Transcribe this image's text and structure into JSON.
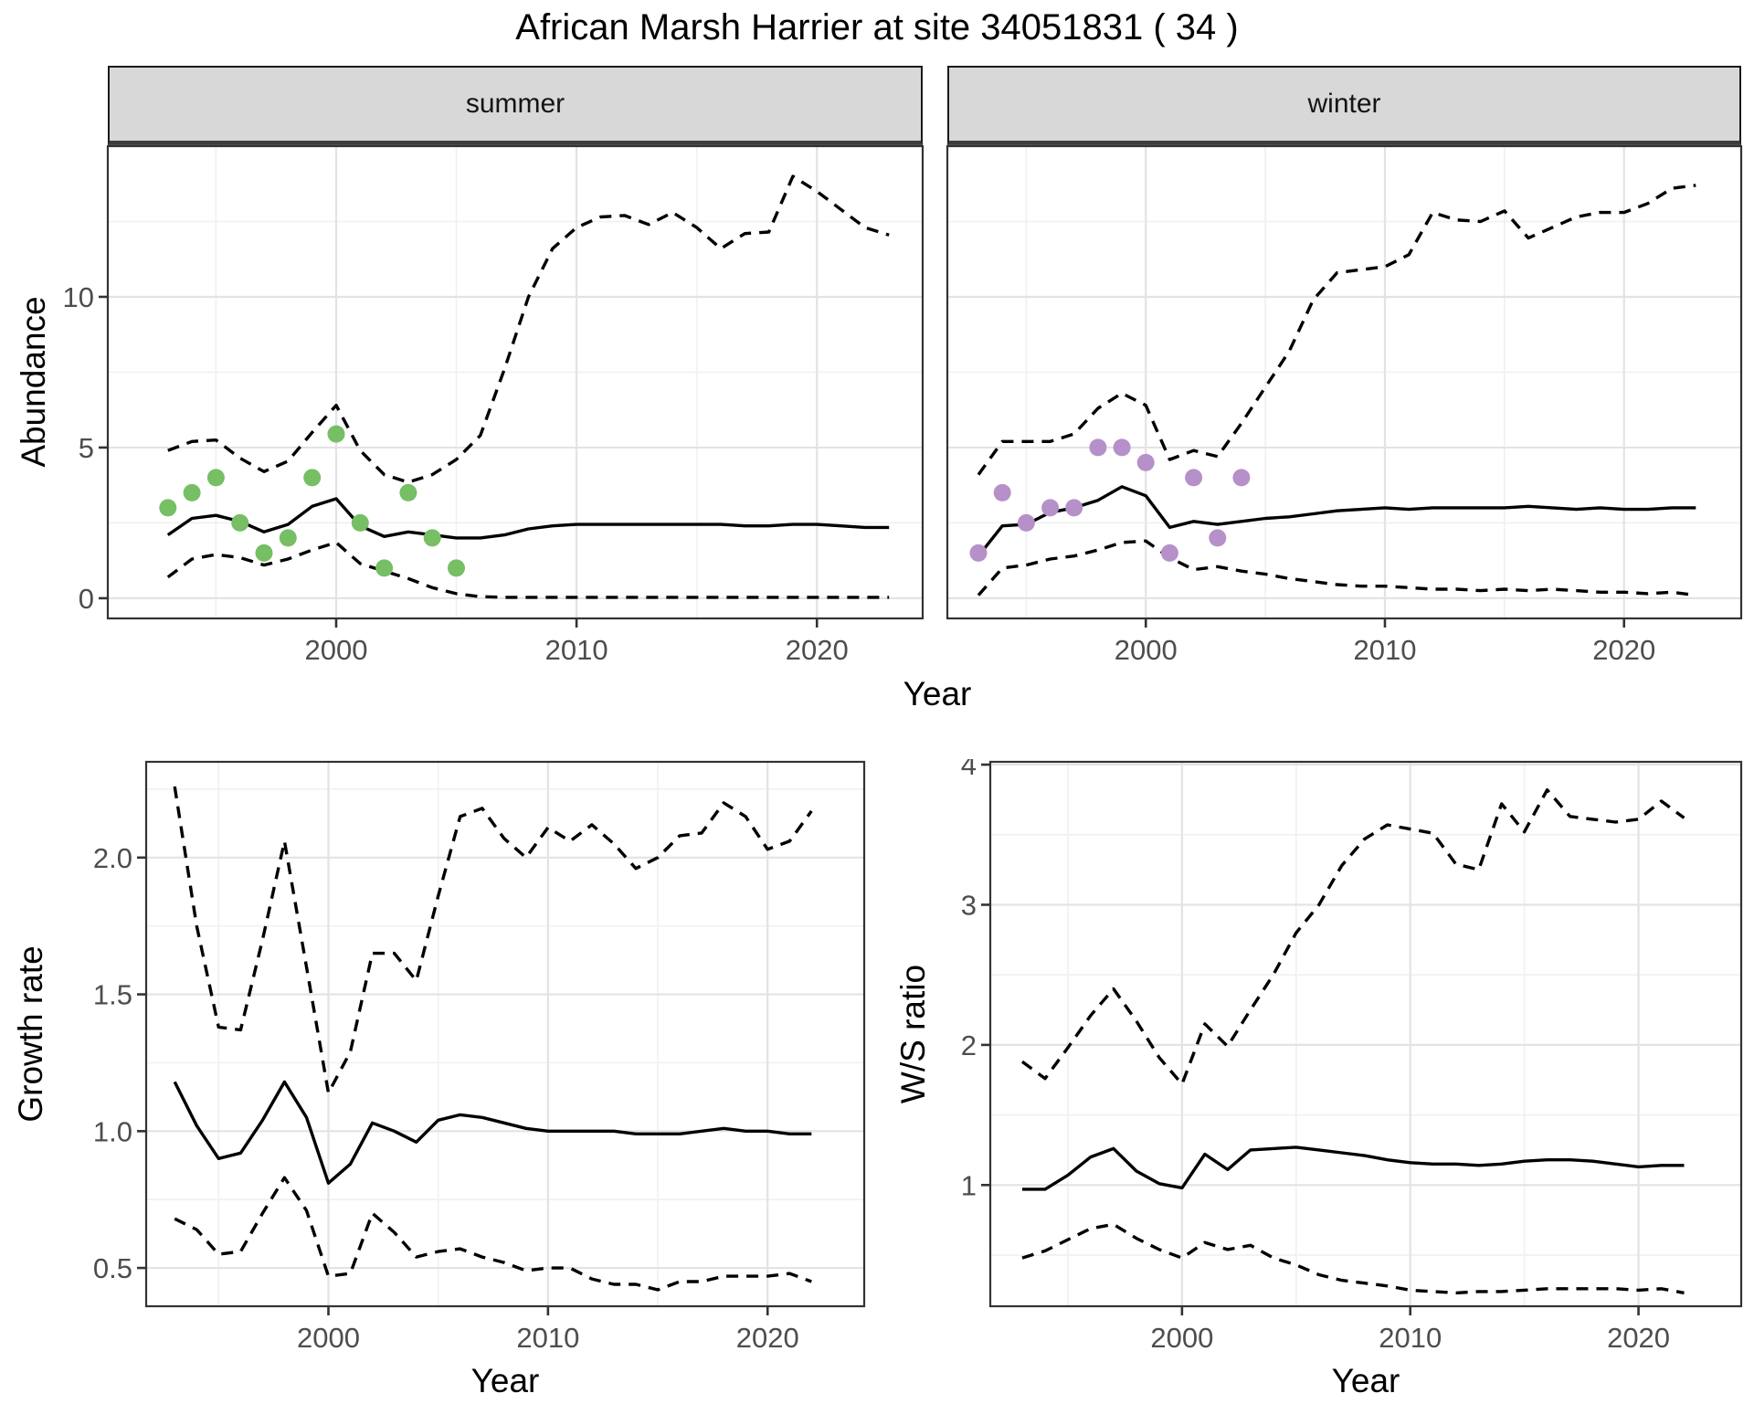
{
  "title": "African Marsh Harrier at site 34051831 ( 34 )",
  "facets": {
    "summer": "summer",
    "winter": "winter"
  },
  "axes": {
    "y_top": "Abundance",
    "y_bottom_left": "Growth rate",
    "y_bottom_right": "W/S ratio",
    "x": "Year"
  },
  "colors": {
    "observed_summer": "#76BF64",
    "observed_winter": "#B690C9",
    "line": "#000000",
    "grid_major": "#E3E3E3",
    "grid_minor": "#F1F1F1",
    "panel_border": "#333333",
    "tick_mark": "#333333",
    "tick_text": "#4D4D4D",
    "strip_fill": "#D8D8D8"
  },
  "chart_data": [
    {
      "id": "summer",
      "type": "line",
      "facet_label": "summer",
      "xlabel": "Year",
      "ylabel": "Abundance",
      "xlim": [
        1990.5,
        2024.4
      ],
      "ylim": [
        -0.67,
        15.0
      ],
      "x_ticks": [
        2000,
        2010,
        2020
      ],
      "x_tick_labels": [
        "2000",
        "2010",
        "2020"
      ],
      "x_grid_minor": [
        1995,
        2005,
        2015
      ],
      "y_ticks": [
        0,
        5,
        10
      ],
      "y_tick_labels": [
        "0",
        "5",
        "10"
      ],
      "y_grid_major": [
        0,
        5,
        10,
        15
      ],
      "y_grid_minor": [
        2.5,
        7.5,
        12.5
      ],
      "x": [
        1993,
        1994,
        1995,
        1996,
        1997,
        1998,
        1999,
        2000,
        2001,
        2002,
        2003,
        2004,
        2005,
        2006,
        2007,
        2008,
        2009,
        2010,
        2011,
        2012,
        2013,
        2014,
        2015,
        2016,
        2017,
        2018,
        2019,
        2020,
        2021,
        2022,
        2023
      ],
      "series": [
        {
          "name": "median",
          "style": "solid",
          "values": [
            2.1,
            2.65,
            2.75,
            2.55,
            2.2,
            2.45,
            3.05,
            3.3,
            2.4,
            2.05,
            2.2,
            2.1,
            2.0,
            2.0,
            2.1,
            2.3,
            2.4,
            2.45,
            2.45,
            2.45,
            2.45,
            2.45,
            2.45,
            2.45,
            2.4,
            2.4,
            2.45,
            2.45,
            2.4,
            2.35,
            2.35
          ]
        },
        {
          "name": "lower_CI",
          "style": "dashed",
          "values": [
            0.7,
            1.3,
            1.45,
            1.35,
            1.1,
            1.3,
            1.6,
            1.85,
            1.15,
            0.9,
            0.65,
            0.35,
            0.15,
            0.05,
            0.03,
            0.03,
            0.03,
            0.03,
            0.03,
            0.03,
            0.03,
            0.03,
            0.03,
            0.03,
            0.03,
            0.03,
            0.03,
            0.03,
            0.03,
            0.03,
            0.03
          ]
        },
        {
          "name": "upper_CI",
          "style": "dashed",
          "values": [
            4.9,
            5.2,
            5.25,
            4.65,
            4.2,
            4.55,
            5.5,
            6.4,
            4.9,
            4.1,
            3.85,
            4.1,
            4.6,
            5.4,
            7.6,
            10.0,
            11.6,
            12.3,
            12.65,
            12.7,
            12.4,
            12.8,
            12.3,
            11.6,
            12.1,
            12.15,
            14.0,
            13.5,
            12.9,
            12.3,
            12.05
          ]
        }
      ],
      "observed": {
        "name": "observed counts",
        "color_key": "observed_summer",
        "x": [
          1993,
          1994,
          1995,
          1996,
          1997,
          1998,
          1999,
          2000,
          2001,
          2002,
          2003,
          2004,
          2005
        ],
        "y": [
          3.0,
          3.5,
          4.0,
          2.5,
          1.5,
          2.0,
          4.0,
          5.45,
          2.5,
          1.0,
          3.5,
          2.0,
          1.0
        ]
      }
    },
    {
      "id": "winter",
      "type": "line",
      "facet_label": "winter",
      "xlabel": "Year",
      "ylabel": "Abundance",
      "xlim": [
        1991.7,
        2024.9
      ],
      "ylim": [
        -0.67,
        15.0
      ],
      "x_ticks": [
        2000,
        2010,
        2020
      ],
      "x_tick_labels": [
        "2000",
        "2010",
        "2020"
      ],
      "x_grid_minor": [
        1995,
        2005,
        2015
      ],
      "y_ticks": [],
      "y_tick_labels": [],
      "y_grid_major": [
        0,
        5,
        10,
        15
      ],
      "y_grid_minor": [
        2.5,
        7.5,
        12.5
      ],
      "x": [
        1993,
        1994,
        1995,
        1996,
        1997,
        1998,
        1999,
        2000,
        2001,
        2002,
        2003,
        2004,
        2005,
        2006,
        2007,
        2008,
        2009,
        2010,
        2011,
        2012,
        2013,
        2014,
        2015,
        2016,
        2017,
        2018,
        2019,
        2020,
        2021,
        2022,
        2023
      ],
      "series": [
        {
          "name": "median",
          "style": "solid",
          "values": [
            1.4,
            2.4,
            2.45,
            2.85,
            3.0,
            3.25,
            3.7,
            3.4,
            2.35,
            2.55,
            2.45,
            2.55,
            2.65,
            2.7,
            2.8,
            2.9,
            2.95,
            3.0,
            2.95,
            3.0,
            3.0,
            3.0,
            3.0,
            3.05,
            3.0,
            2.95,
            3.0,
            2.95,
            2.95,
            3.0,
            3.0
          ]
        },
        {
          "name": "lower_CI",
          "style": "dashed",
          "values": [
            0.1,
            1.0,
            1.1,
            1.3,
            1.4,
            1.6,
            1.85,
            1.9,
            1.35,
            0.95,
            1.05,
            0.9,
            0.8,
            0.65,
            0.55,
            0.45,
            0.4,
            0.4,
            0.35,
            0.3,
            0.3,
            0.25,
            0.3,
            0.25,
            0.3,
            0.25,
            0.2,
            0.2,
            0.15,
            0.2,
            0.1
          ]
        },
        {
          "name": "upper_CI",
          "style": "dashed",
          "values": [
            4.1,
            5.2,
            5.2,
            5.2,
            5.45,
            6.3,
            6.8,
            6.4,
            4.6,
            4.9,
            4.7,
            5.8,
            7.0,
            8.2,
            9.9,
            10.8,
            10.9,
            11.0,
            11.4,
            12.8,
            12.55,
            12.5,
            12.85,
            11.95,
            12.3,
            12.65,
            12.8,
            12.8,
            13.1,
            13.6,
            13.7
          ]
        }
      ],
      "observed": {
        "name": "observed counts",
        "color_key": "observed_winter",
        "x": [
          1993,
          1994,
          1995,
          1996,
          1997,
          1998,
          1999,
          2000,
          2001,
          2002,
          2003,
          2004
        ],
        "y": [
          1.5,
          3.5,
          2.5,
          3.0,
          3.0,
          5.0,
          5.0,
          4.5,
          1.5,
          4.0,
          2.0,
          4.0
        ]
      }
    },
    {
      "id": "growth",
      "type": "line",
      "facet_label": "",
      "xlabel": "Year",
      "ylabel": "Growth rate",
      "xlim": [
        1991.7,
        2024.4
      ],
      "ylim": [
        0.36,
        2.35
      ],
      "x_ticks": [
        2000,
        2010,
        2020
      ],
      "x_tick_labels": [
        "2000",
        "2010",
        "2020"
      ],
      "x_grid_minor": [
        1995,
        2005,
        2015
      ],
      "y_ticks": [
        0.5,
        1.0,
        1.5,
        2.0
      ],
      "y_tick_labels": [
        "0.5",
        "1.0",
        "1.5",
        "2.0"
      ],
      "y_grid_major": [
        0.5,
        1.0,
        1.5,
        2.0
      ],
      "y_grid_minor": [
        0.75,
        1.25,
        1.75,
        2.25
      ],
      "x": [
        1993,
        1994,
        1995,
        1996,
        1997,
        1998,
        1999,
        2000,
        2001,
        2002,
        2003,
        2004,
        2005,
        2006,
        2007,
        2008,
        2009,
        2010,
        2011,
        2012,
        2013,
        2014,
        2015,
        2016,
        2017,
        2018,
        2019,
        2020,
        2021,
        2022
      ],
      "series": [
        {
          "name": "median",
          "style": "solid",
          "values": [
            1.18,
            1.02,
            0.9,
            0.92,
            1.04,
            1.18,
            1.05,
            0.81,
            0.88,
            1.03,
            1.0,
            0.96,
            1.04,
            1.06,
            1.05,
            1.03,
            1.01,
            1.0,
            1.0,
            1.0,
            1.0,
            0.99,
            0.99,
            0.99,
            1.0,
            1.01,
            1.0,
            1.0,
            0.99,
            0.99
          ]
        },
        {
          "name": "lower_CI",
          "style": "dashed",
          "values": [
            0.68,
            0.64,
            0.55,
            0.56,
            0.7,
            0.83,
            0.71,
            0.47,
            0.48,
            0.7,
            0.63,
            0.54,
            0.56,
            0.57,
            0.54,
            0.52,
            0.49,
            0.5,
            0.5,
            0.46,
            0.44,
            0.44,
            0.42,
            0.45,
            0.45,
            0.47,
            0.47,
            0.47,
            0.48,
            0.45
          ]
        },
        {
          "name": "upper_CI",
          "style": "dashed",
          "values": [
            2.26,
            1.75,
            1.38,
            1.37,
            1.7,
            2.06,
            1.6,
            1.14,
            1.29,
            1.65,
            1.65,
            1.55,
            1.86,
            2.15,
            2.18,
            2.07,
            2.0,
            2.11,
            2.06,
            2.12,
            2.05,
            1.96,
            2.0,
            2.08,
            2.09,
            2.2,
            2.15,
            2.03,
            2.06,
            2.17
          ]
        }
      ],
      "observed": null
    },
    {
      "id": "ws",
      "type": "line",
      "facet_label": "",
      "xlabel": "Year",
      "ylabel": "W/S ratio",
      "xlim": [
        1991.6,
        2024.5
      ],
      "ylim": [
        0.135,
        4.02
      ],
      "x_ticks": [
        2000,
        2010,
        2020
      ],
      "x_tick_labels": [
        "2000",
        "2010",
        "2020"
      ],
      "x_grid_minor": [
        1995,
        2005,
        2015
      ],
      "y_ticks": [
        1,
        2,
        3,
        4
      ],
      "y_tick_labels": [
        "1",
        "2",
        "3",
        "4"
      ],
      "y_grid_major": [
        1,
        2,
        3,
        4
      ],
      "y_grid_minor": [
        0.5,
        1.5,
        2.5,
        3.5
      ],
      "x": [
        1993,
        1994,
        1995,
        1996,
        1997,
        1998,
        1999,
        2000,
        2001,
        2002,
        2003,
        2004,
        2005,
        2006,
        2007,
        2008,
        2009,
        2010,
        2011,
        2012,
        2013,
        2014,
        2015,
        2016,
        2017,
        2018,
        2019,
        2020,
        2021,
        2022
      ],
      "series": [
        {
          "name": "median",
          "style": "solid",
          "values": [
            0.97,
            0.97,
            1.07,
            1.2,
            1.26,
            1.1,
            1.01,
            0.98,
            1.22,
            1.11,
            1.25,
            1.26,
            1.27,
            1.25,
            1.23,
            1.21,
            1.18,
            1.16,
            1.15,
            1.15,
            1.14,
            1.15,
            1.17,
            1.18,
            1.18,
            1.17,
            1.15,
            1.13,
            1.14,
            1.14
          ]
        },
        {
          "name": "lower_CI",
          "style": "dashed",
          "values": [
            0.48,
            0.53,
            0.61,
            0.69,
            0.72,
            0.62,
            0.54,
            0.48,
            0.59,
            0.54,
            0.57,
            0.48,
            0.43,
            0.36,
            0.32,
            0.3,
            0.28,
            0.25,
            0.24,
            0.23,
            0.24,
            0.24,
            0.25,
            0.26,
            0.26,
            0.26,
            0.26,
            0.25,
            0.26,
            0.23
          ]
        },
        {
          "name": "upper_CI",
          "style": "dashed",
          "values": [
            1.88,
            1.76,
            1.98,
            2.21,
            2.4,
            2.17,
            1.91,
            1.72,
            2.15,
            1.99,
            2.25,
            2.5,
            2.8,
            3.0,
            3.28,
            3.47,
            3.57,
            3.54,
            3.51,
            3.29,
            3.25,
            3.72,
            3.52,
            3.82,
            3.63,
            3.61,
            3.59,
            3.61,
            3.74,
            3.62
          ]
        }
      ],
      "observed": null
    }
  ]
}
